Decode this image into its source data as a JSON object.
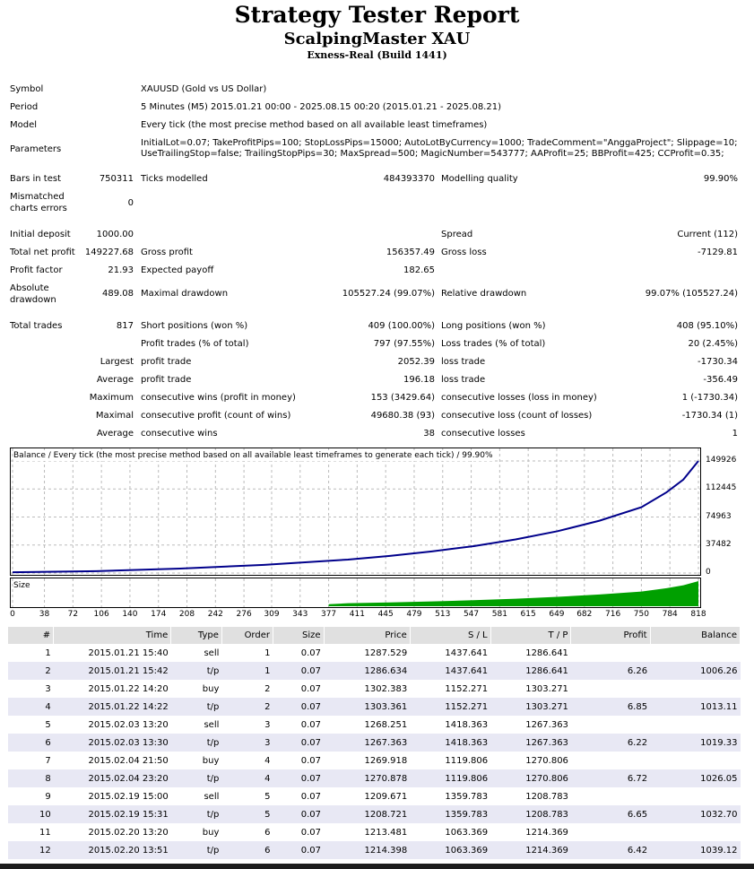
{
  "header": {
    "title": "Strategy Tester Report",
    "ea_name": "ScalpingMaster XAU",
    "server": "Exness-Real (Build 1441)"
  },
  "info": {
    "symbol_label": "Symbol",
    "symbol_value": "XAUUSD (Gold vs US Dollar)",
    "period_label": "Period",
    "period_value": "5 Minutes (M5) 2015.01.21 00:00 - 2025.08.15 00:20 (2015.01.21 - 2025.08.21)",
    "model_label": "Model",
    "model_value": "Every tick (the most precise method based on all available least timeframes)",
    "parameters_label": "Parameters",
    "parameters_line1": "InitialLot=0.07; TakeProfitPips=100; StopLossPips=15000; AutoLotByCurrency=1000; TradeComment=\"AnggaProject\"; Slippage=10;",
    "parameters_line2": "UseTrailingStop=false; TrailingStopPips=30; MaxSpread=500; MagicNumber=543777; AAProfit=25; BBProfit=425; CCProfit=0.35;"
  },
  "stats": {
    "bars_label": "Bars in test",
    "bars_value": "750311",
    "ticks_label": "Ticks modelled",
    "ticks_value": "484393370",
    "quality_label": "Modelling quality",
    "quality_value": "99.90%",
    "mismatched_label_1": "Mismatched",
    "mismatched_label_2": "charts errors",
    "mismatched_value": "0",
    "deposit_label": "Initial deposit",
    "deposit_value": "1000.00",
    "spread_label": "Spread",
    "spread_value": "Current (112)",
    "net_label": "Total net profit",
    "net_value": "149227.68",
    "gross_profit_label": "Gross profit",
    "gross_profit_value": "156357.49",
    "gross_loss_label": "Gross loss",
    "gross_loss_value": "-7129.81",
    "pf_label": "Profit factor",
    "pf_value": "21.93",
    "payoff_label": "Expected payoff",
    "payoff_value": "182.65",
    "abs_dd_label_1": "Absolute",
    "abs_dd_label_2": "drawdown",
    "abs_dd_value": "489.08",
    "max_dd_label": "Maximal drawdown",
    "max_dd_value": "105527.24 (99.07%)",
    "rel_dd_label": "Relative drawdown",
    "rel_dd_value": "99.07% (105527.24)",
    "trades_label": "Total trades",
    "trades_value": "817",
    "short_label": "Short positions (won %)",
    "short_value": "409 (100.00%)",
    "long_label": "Long positions (won %)",
    "long_value": "408 (95.10%)",
    "profit_trades_label": "Profit trades (% of total)",
    "profit_trades_value": "797 (97.55%)",
    "loss_trades_label": "Loss trades (% of total)",
    "loss_trades_value": "20 (2.45%)",
    "largest_label": "Largest",
    "largest_profit_label": "profit trade",
    "largest_profit_value": "2052.39",
    "largest_loss_label": "loss trade",
    "largest_loss_value": "-1730.34",
    "average_label": "Average",
    "avg_profit_label": "profit trade",
    "avg_profit_value": "196.18",
    "avg_loss_label": "loss trade",
    "avg_loss_value": "-356.49",
    "maximum_label": "Maximum",
    "max_cons_wins_label": "consecutive wins (profit in money)",
    "max_cons_wins_value": "153 (3429.64)",
    "max_cons_losses_label": "consecutive losses (loss in money)",
    "max_cons_losses_value": "1 (-1730.34)",
    "maximal_label": "Maximal",
    "maximal_profit_label": "consecutive profit (count of wins)",
    "maximal_profit_value": "49680.38 (93)",
    "maximal_loss_label": "consecutive loss (count of losses)",
    "maximal_loss_value": "-1730.34 (1)",
    "average2_label": "Average",
    "avg_cons_wins_label": "consecutive wins",
    "avg_cons_wins_value": "38",
    "avg_cons_losses_label": "consecutive losses",
    "avg_cons_losses_value": "1"
  },
  "chart_data": {
    "type": "line",
    "title": "Balance / Every tick (the most precise method based on all available least timeframes to generate each tick) / 99.90%",
    "size_label": "Size",
    "yticks": [
      "149926",
      "112445",
      "74963",
      "37482",
      "0"
    ],
    "xticks": [
      "0",
      "38",
      "72",
      "106",
      "140",
      "174",
      "208",
      "242",
      "276",
      "309",
      "343",
      "377",
      "411",
      "445",
      "479",
      "513",
      "547",
      "581",
      "615",
      "649",
      "682",
      "716",
      "750",
      "784",
      "818"
    ],
    "xlim": [
      0,
      818
    ],
    "ylim": [
      0,
      149926
    ],
    "balance_x": [
      0,
      100,
      200,
      300,
      400,
      450,
      500,
      550,
      600,
      650,
      700,
      750,
      780,
      800,
      818
    ],
    "balance_y": [
      1000,
      2500,
      6000,
      11000,
      18000,
      23000,
      29000,
      36000,
      45000,
      56000,
      70000,
      88000,
      108000,
      125000,
      149926
    ],
    "line_color": "#00008b",
    "size_color": "#00a000"
  },
  "table": {
    "headers": [
      "#",
      "Time",
      "Type",
      "Order",
      "Size",
      "Price",
      "S / L",
      "T / P",
      "Profit",
      "Balance"
    ],
    "rows": [
      [
        "1",
        "2015.01.21 15:40",
        "sell",
        "1",
        "0.07",
        "1287.529",
        "1437.641",
        "1286.641",
        "",
        ""
      ],
      [
        "2",
        "2015.01.21 15:42",
        "t/p",
        "1",
        "0.07",
        "1286.634",
        "1437.641",
        "1286.641",
        "6.26",
        "1006.26"
      ],
      [
        "3",
        "2015.01.22 14:20",
        "buy",
        "2",
        "0.07",
        "1302.383",
        "1152.271",
        "1303.271",
        "",
        ""
      ],
      [
        "4",
        "2015.01.22 14:22",
        "t/p",
        "2",
        "0.07",
        "1303.361",
        "1152.271",
        "1303.271",
        "6.85",
        "1013.11"
      ],
      [
        "5",
        "2015.02.03 13:20",
        "sell",
        "3",
        "0.07",
        "1268.251",
        "1418.363",
        "1267.363",
        "",
        ""
      ],
      [
        "6",
        "2015.02.03 13:30",
        "t/p",
        "3",
        "0.07",
        "1267.363",
        "1418.363",
        "1267.363",
        "6.22",
        "1019.33"
      ],
      [
        "7",
        "2015.02.04 21:50",
        "buy",
        "4",
        "0.07",
        "1269.918",
        "1119.806",
        "1270.806",
        "",
        ""
      ],
      [
        "8",
        "2015.02.04 23:20",
        "t/p",
        "4",
        "0.07",
        "1270.878",
        "1119.806",
        "1270.806",
        "6.72",
        "1026.05"
      ],
      [
        "9",
        "2015.02.19 15:00",
        "sell",
        "5",
        "0.07",
        "1209.671",
        "1359.783",
        "1208.783",
        "",
        ""
      ],
      [
        "10",
        "2015.02.19 15:31",
        "t/p",
        "5",
        "0.07",
        "1208.721",
        "1359.783",
        "1208.783",
        "6.65",
        "1032.70"
      ],
      [
        "11",
        "2015.02.20 13:20",
        "buy",
        "6",
        "0.07",
        "1213.481",
        "1063.369",
        "1214.369",
        "",
        ""
      ],
      [
        "12",
        "2015.02.20 13:51",
        "t/p",
        "6",
        "0.07",
        "1214.398",
        "1063.369",
        "1214.369",
        "6.42",
        "1039.12"
      ]
    ]
  }
}
